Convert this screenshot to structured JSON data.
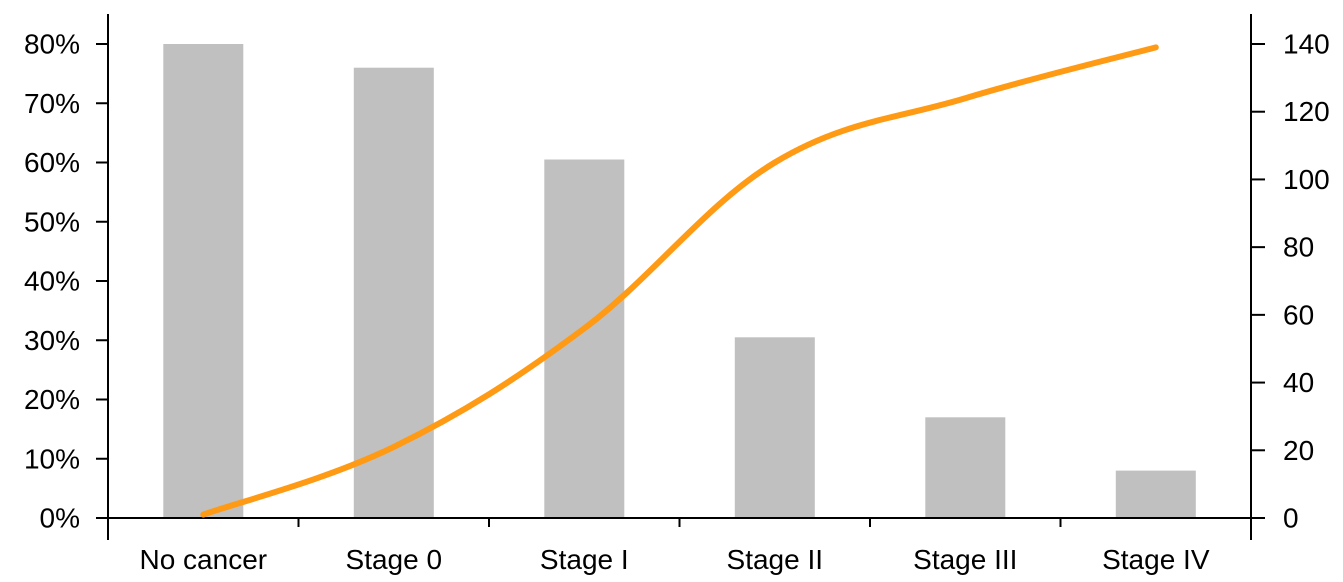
{
  "chart_data": {
    "type": "bar",
    "categories": [
      "No cancer",
      "Stage 0",
      "Stage I",
      "Stage II",
      "Stage III",
      "Stage IV"
    ],
    "bar_series": {
      "values": [
        80,
        76,
        60.5,
        30.5,
        17,
        8
      ],
      "unit": "%",
      "axis": "left",
      "color": "#c0c0c0"
    },
    "line_series": {
      "points": [
        {
          "x": "No cancer",
          "y": 1
        },
        {
          "x": "Stage 0",
          "y": 21
        },
        {
          "x": "Stage I",
          "y": 56
        },
        {
          "x": "Stage II",
          "y": 105
        },
        {
          "x": "Stage III",
          "y": 124
        },
        {
          "x": "Stage IV",
          "y": 139
        }
      ],
      "axis": "right",
      "color": "#ff9a14"
    },
    "y_left": {
      "min": 0,
      "max": 80,
      "ticks": [
        0,
        10,
        20,
        30,
        40,
        50,
        60,
        70,
        80
      ],
      "tick_labels": [
        "0%",
        "10%",
        "20%",
        "30%",
        "40%",
        "50%",
        "60%",
        "70%",
        "80%"
      ],
      "label": ""
    },
    "y_right": {
      "min": 0,
      "max": 140,
      "ticks": [
        0,
        20,
        40,
        60,
        80,
        100,
        120,
        140
      ],
      "tick_labels": [
        "0",
        "20",
        "40",
        "60",
        "80",
        "100",
        "120",
        "140"
      ],
      "label": ""
    },
    "title": "",
    "xlabel": "",
    "grid": false,
    "legend": "none"
  }
}
